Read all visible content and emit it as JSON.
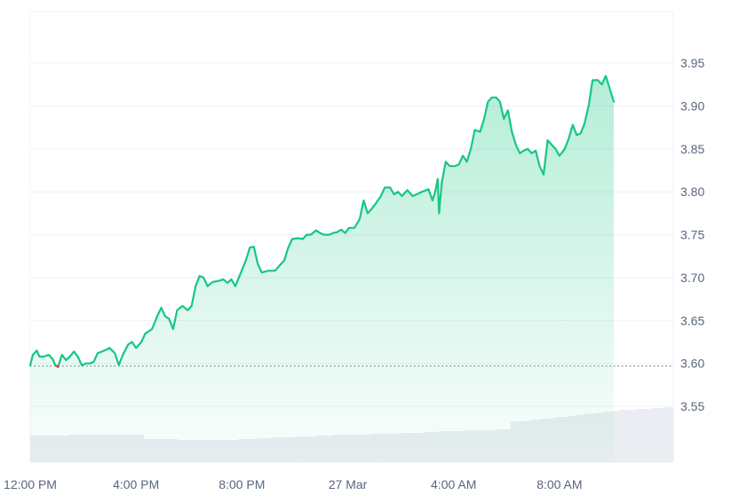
{
  "colors": {
    "up": "#16c784",
    "down": "#ea3943",
    "grid": "#eff2f5",
    "baseline": "#58667e",
    "volume": "#eaedf1",
    "label": "#58667e"
  },
  "chart_data": {
    "type": "area",
    "baseline": 3.597,
    "ylim": [
      3.485,
      4.01
    ],
    "y_ticks": [
      "3.55",
      "3.60",
      "3.65",
      "3.70",
      "3.75",
      "3.80",
      "3.85",
      "3.90",
      "3.95"
    ],
    "x_range": [
      0,
      24.3
    ],
    "x_ticks": [
      {
        "label": "12:00 PM",
        "x": 0
      },
      {
        "label": "4:00 PM",
        "x": 4
      },
      {
        "label": "8:00 PM",
        "x": 8
      },
      {
        "label": "27 Mar",
        "x": 12
      },
      {
        "label": "4:00 AM",
        "x": 16
      },
      {
        "label": "8:00 AM",
        "x": 20
      }
    ],
    "series": [
      {
        "points": [
          [
            0.0,
            3.598
          ],
          [
            0.1,
            3.61
          ],
          [
            0.25,
            3.615
          ],
          [
            0.35,
            3.608
          ],
          [
            0.5,
            3.608
          ],
          [
            0.7,
            3.61
          ],
          [
            0.85,
            3.605
          ],
          [
            0.95,
            3.598
          ],
          [
            1.05,
            3.596
          ],
          [
            1.2,
            3.61
          ],
          [
            1.35,
            3.604
          ],
          [
            1.5,
            3.608
          ],
          [
            1.65,
            3.614
          ],
          [
            1.8,
            3.608
          ],
          [
            1.95,
            3.598
          ],
          [
            2.1,
            3.6
          ],
          [
            2.25,
            3.6
          ],
          [
            2.4,
            3.602
          ],
          [
            2.55,
            3.612
          ],
          [
            2.8,
            3.615
          ],
          [
            3.0,
            3.618
          ],
          [
            3.2,
            3.612
          ],
          [
            3.35,
            3.598
          ],
          [
            3.5,
            3.61
          ],
          [
            3.7,
            3.622
          ],
          [
            3.85,
            3.625
          ],
          [
            4.0,
            3.618
          ],
          [
            4.2,
            3.625
          ],
          [
            4.35,
            3.635
          ],
          [
            4.6,
            3.64
          ],
          [
            4.8,
            3.655
          ],
          [
            4.95,
            3.665
          ],
          [
            5.1,
            3.655
          ],
          [
            5.25,
            3.652
          ],
          [
            5.4,
            3.64
          ],
          [
            5.55,
            3.662
          ],
          [
            5.75,
            3.667
          ],
          [
            5.95,
            3.662
          ],
          [
            6.1,
            3.667
          ],
          [
            6.25,
            3.69
          ],
          [
            6.4,
            3.702
          ],
          [
            6.55,
            3.7
          ],
          [
            6.7,
            3.69
          ],
          [
            6.9,
            3.695
          ],
          [
            7.1,
            3.696
          ],
          [
            7.3,
            3.698
          ],
          [
            7.45,
            3.694
          ],
          [
            7.6,
            3.698
          ],
          [
            7.75,
            3.69
          ],
          [
            7.95,
            3.705
          ],
          [
            8.15,
            3.72
          ],
          [
            8.3,
            3.735
          ],
          [
            8.45,
            3.736
          ],
          [
            8.6,
            3.716
          ],
          [
            8.75,
            3.706
          ],
          [
            9.0,
            3.708
          ],
          [
            9.25,
            3.708
          ],
          [
            9.45,
            3.715
          ],
          [
            9.6,
            3.72
          ],
          [
            9.75,
            3.735
          ],
          [
            9.9,
            3.745
          ],
          [
            10.1,
            3.746
          ],
          [
            10.3,
            3.745
          ],
          [
            10.45,
            3.75
          ],
          [
            10.6,
            3.75
          ],
          [
            10.8,
            3.755
          ],
          [
            10.95,
            3.752
          ],
          [
            11.1,
            3.75
          ],
          [
            11.3,
            3.75
          ],
          [
            11.45,
            3.752
          ],
          [
            11.6,
            3.753
          ],
          [
            11.75,
            3.756
          ],
          [
            11.9,
            3.752
          ],
          [
            12.05,
            3.758
          ],
          [
            12.25,
            3.758
          ],
          [
            12.45,
            3.768
          ],
          [
            12.6,
            3.79
          ],
          [
            12.75,
            3.775
          ],
          [
            12.9,
            3.78
          ],
          [
            13.05,
            3.786
          ],
          [
            13.25,
            3.795
          ],
          [
            13.4,
            3.805
          ],
          [
            13.6,
            3.805
          ],
          [
            13.75,
            3.797
          ],
          [
            13.9,
            3.8
          ],
          [
            14.05,
            3.795
          ],
          [
            14.25,
            3.802
          ],
          [
            14.45,
            3.795
          ],
          [
            14.6,
            3.797
          ],
          [
            14.8,
            3.8
          ],
          [
            15.05,
            3.803
          ],
          [
            15.2,
            3.79
          ],
          [
            15.3,
            3.8
          ],
          [
            15.4,
            3.815
          ],
          [
            15.45,
            3.775
          ],
          [
            15.55,
            3.81
          ],
          [
            15.7,
            3.835
          ],
          [
            15.85,
            3.83
          ],
          [
            16.05,
            3.83
          ],
          [
            16.2,
            3.832
          ],
          [
            16.35,
            3.842
          ],
          [
            16.5,
            3.835
          ],
          [
            16.65,
            3.85
          ],
          [
            16.8,
            3.872
          ],
          [
            17.0,
            3.87
          ],
          [
            17.15,
            3.885
          ],
          [
            17.3,
            3.905
          ],
          [
            17.45,
            3.91
          ],
          [
            17.6,
            3.91
          ],
          [
            17.75,
            3.905
          ],
          [
            17.9,
            3.885
          ],
          [
            18.05,
            3.895
          ],
          [
            18.2,
            3.87
          ],
          [
            18.35,
            3.855
          ],
          [
            18.5,
            3.845
          ],
          [
            18.65,
            3.848
          ],
          [
            18.8,
            3.85
          ],
          [
            18.95,
            3.845
          ],
          [
            19.1,
            3.848
          ],
          [
            19.25,
            3.83
          ],
          [
            19.4,
            3.82
          ],
          [
            19.55,
            3.86
          ],
          [
            19.7,
            3.855
          ],
          [
            19.85,
            3.85
          ],
          [
            20.0,
            3.842
          ],
          [
            20.2,
            3.85
          ],
          [
            20.35,
            3.862
          ],
          [
            20.5,
            3.878
          ],
          [
            20.65,
            3.866
          ],
          [
            20.8,
            3.868
          ],
          [
            20.95,
            3.88
          ],
          [
            21.1,
            3.9
          ],
          [
            21.25,
            3.93
          ],
          [
            21.45,
            3.93
          ],
          [
            21.6,
            3.925
          ],
          [
            21.75,
            3.935
          ],
          [
            21.9,
            3.92
          ],
          [
            22.05,
            3.905
          ]
        ]
      }
    ],
    "volume": [
      0.3,
      0.3,
      0.3,
      0.3,
      0.3,
      0.3,
      0.3,
      0.3,
      0.3,
      0.3,
      0.31,
      0.31,
      0.31,
      0.31,
      0.31,
      0.31,
      0.31,
      0.31,
      0.31,
      0.31,
      0.31,
      0.31,
      0.31,
      0.31,
      0.31,
      0.31,
      0.31,
      0.31,
      0.31,
      0.31,
      0.26,
      0.26,
      0.26,
      0.26,
      0.26,
      0.26,
      0.26,
      0.26,
      0.26,
      0.25,
      0.25,
      0.25,
      0.25,
      0.25,
      0.25,
      0.25,
      0.25,
      0.25,
      0.25,
      0.25,
      0.25,
      0.25,
      0.25,
      0.25,
      0.25,
      0.26,
      0.26,
      0.26,
      0.26,
      0.26,
      0.27,
      0.27,
      0.27,
      0.27,
      0.28,
      0.28,
      0.28,
      0.28,
      0.28,
      0.28,
      0.29,
      0.29,
      0.29,
      0.29,
      0.29,
      0.29,
      0.3,
      0.3,
      0.3,
      0.3,
      0.31,
      0.31,
      0.31,
      0.31,
      0.31,
      0.31,
      0.31,
      0.31,
      0.31,
      0.31,
      0.32,
      0.32,
      0.32,
      0.32,
      0.32,
      0.32,
      0.32,
      0.32,
      0.33,
      0.33,
      0.33,
      0.33,
      0.33,
      0.33,
      0.34,
      0.34,
      0.34,
      0.34,
      0.35,
      0.35,
      0.35,
      0.35,
      0.35,
      0.35,
      0.35,
      0.36,
      0.36,
      0.36,
      0.36,
      0.36,
      0.36,
      0.36,
      0.36,
      0.37,
      0.37,
      0.37,
      0.37,
      0.46,
      0.46,
      0.46,
      0.46,
      0.47,
      0.47,
      0.48,
      0.48,
      0.49,
      0.49,
      0.49,
      0.5,
      0.51,
      0.51,
      0.51,
      0.52,
      0.52,
      0.53,
      0.53,
      0.54,
      0.55,
      0.55,
      0.55,
      0.56,
      0.56,
      0.57,
      0.57,
      0.58,
      0.58,
      0.59,
      0.59,
      0.59,
      0.59,
      0.6,
      0.6,
      0.6,
      0.6,
      0.61,
      0.61,
      0.61,
      0.61,
      0.62,
      0.62
    ]
  }
}
